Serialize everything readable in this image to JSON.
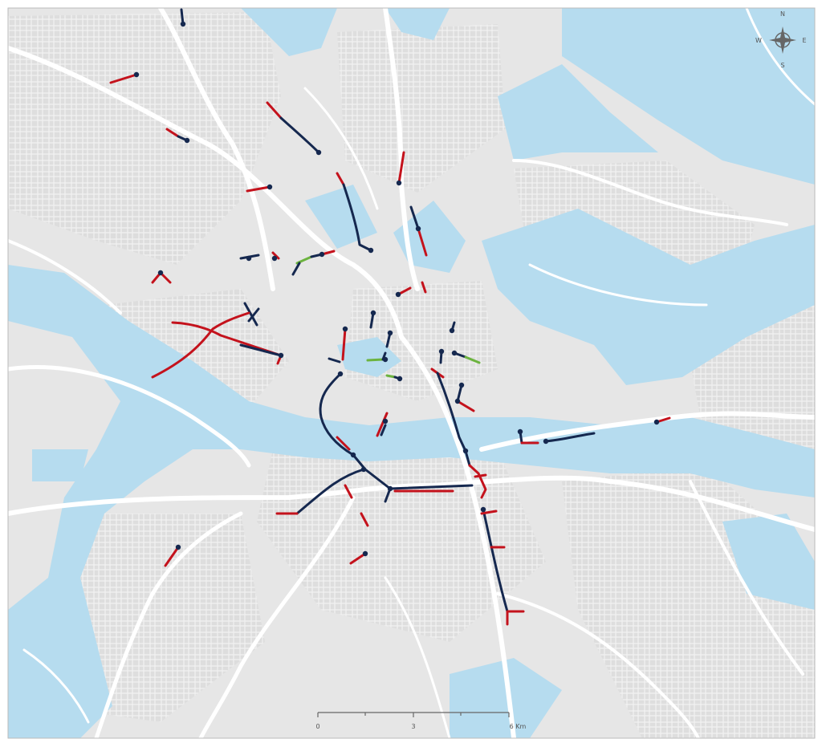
{
  "compass": {
    "north": "N",
    "east": "E",
    "south": "S",
    "west": "W"
  },
  "scale_bar": {
    "labels": [
      "0",
      "3",
      "6 Km"
    ]
  }
}
